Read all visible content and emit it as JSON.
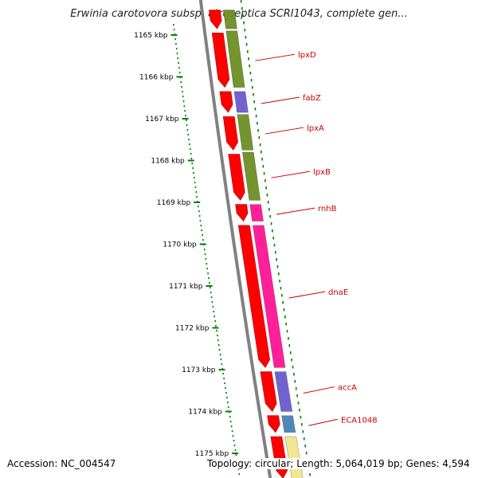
{
  "title": "Erwinia carotovora subsp. atroseptica SCRI1043, complete gen...",
  "footer": {
    "accession": "Accession: NC_004547",
    "summary": "Topology: circular; Length: 5,064,019 bp; Genes: 4,594"
  },
  "colors": {
    "cds": "#ff0000",
    "olive": "#6b8e23",
    "purple": "#6a5acd",
    "magenta": "#ff1493",
    "steelblue": "#4682b4",
    "khaki": "#f0e68c",
    "backbone": "#808080",
    "tick": "#008000",
    "label": "#cc0000"
  },
  "kbp_ticks": [
    {
      "kbp": 1165,
      "label": "1165 kbp"
    },
    {
      "kbp": 1166,
      "label": "1166 kbp"
    },
    {
      "kbp": 1167,
      "label": "1167 kbp"
    },
    {
      "kbp": 1168,
      "label": "1168 kbp"
    },
    {
      "kbp": 1169,
      "label": "1169 kbp"
    },
    {
      "kbp": 1170,
      "label": "1170 kbp"
    },
    {
      "kbp": 1171,
      "label": "1171 kbp"
    },
    {
      "kbp": 1172,
      "label": "1172 kbp"
    },
    {
      "kbp": 1173,
      "label": "1173 kbp"
    },
    {
      "kbp": 1174,
      "label": "1174 kbp"
    },
    {
      "kbp": 1175,
      "label": "1175 kbp"
    }
  ],
  "cds_features": [
    {
      "start": 1164.4,
      "end": 1164.85
    },
    {
      "start": 1164.95,
      "end": 1166.25
    },
    {
      "start": 1166.35,
      "end": 1166.85
    },
    {
      "start": 1166.95,
      "end": 1167.75
    },
    {
      "start": 1167.85,
      "end": 1168.95
    },
    {
      "start": 1169.05,
      "end": 1169.45
    },
    {
      "start": 1169.55,
      "end": 1172.95
    },
    {
      "start": 1173.05,
      "end": 1174.0
    },
    {
      "start": 1174.1,
      "end": 1174.5
    },
    {
      "start": 1174.6,
      "end": 1175.6
    }
  ],
  "genes": [
    {
      "name": "",
      "color": "olive",
      "start": 1164.4,
      "end": 1164.85
    },
    {
      "name": "lpxD",
      "color": "olive",
      "start": 1164.9,
      "end": 1166.25
    },
    {
      "name": "fabZ",
      "color": "purple",
      "start": 1166.35,
      "end": 1166.85
    },
    {
      "name": "lpxA",
      "color": "olive",
      "start": 1166.9,
      "end": 1167.75
    },
    {
      "name": "lpxB",
      "color": "olive",
      "start": 1167.8,
      "end": 1168.95
    },
    {
      "name": "rnhB",
      "color": "magenta",
      "start": 1169.05,
      "end": 1169.45
    },
    {
      "name": "dnaE",
      "color": "magenta",
      "start": 1169.55,
      "end": 1172.95
    },
    {
      "name": "accA",
      "color": "purple",
      "start": 1173.05,
      "end": 1174.0
    },
    {
      "name": "ECA1048",
      "color": "steelblue",
      "start": 1174.1,
      "end": 1174.5
    },
    {
      "name": "",
      "color": "khaki",
      "start": 1174.6,
      "end": 1175.6
    }
  ]
}
